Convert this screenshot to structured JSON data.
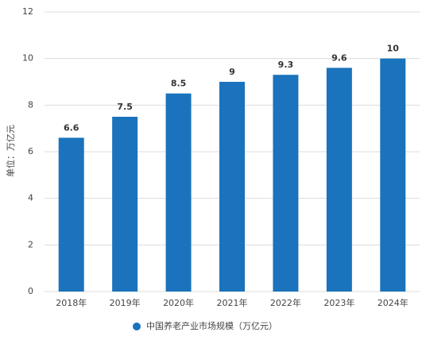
{
  "chart_data": {
    "type": "bar",
    "y_label": "单位：万亿元",
    "categories": [
      "2018年",
      "2019年",
      "2020年",
      "2021年",
      "2022年",
      "2023年",
      "2024年"
    ],
    "series": [
      {
        "name": "中国养老产业市场规模（万亿元）",
        "color": "#1a73bc",
        "values": [
          6.6,
          7.5,
          8.5,
          9,
          9.3,
          9.6,
          10
        ]
      }
    ],
    "ylim": [
      0,
      12
    ],
    "yticks": [
      0,
      2,
      4,
      6,
      8,
      10,
      12
    ],
    "grid": true
  }
}
